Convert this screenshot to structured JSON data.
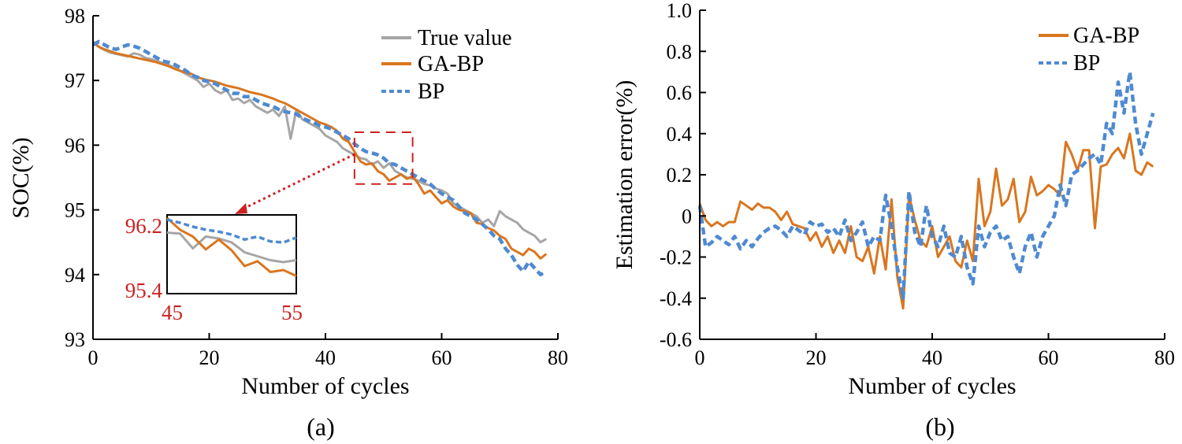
{
  "colors": {
    "true_value": "#a6a6a6",
    "ga_bp": "#d9761f",
    "bp": "#4f8ad1",
    "highlight": "#cc2222"
  },
  "chart_data": [
    {
      "type": "line",
      "panel_label": "(a)",
      "title": "",
      "xlabel": "Number of cycles",
      "ylabel": "SOC(%)",
      "xlim": [
        0,
        80
      ],
      "ylim": [
        93,
        98
      ],
      "xticks": [
        0,
        20,
        40,
        60,
        80
      ],
      "yticks": [
        93,
        94,
        95,
        96,
        97,
        98
      ],
      "grid": false,
      "legend_position": "top-right",
      "series": [
        {
          "name": "True value",
          "style": "solid",
          "color": "#a6a6a6",
          "values": [
            97.58,
            97.52,
            97.47,
            97.43,
            97.41,
            97.39,
            97.37,
            97.42,
            97.4,
            97.35,
            97.33,
            97.3,
            97.27,
            97.24,
            97.2,
            97.15,
            97.1,
            97.05,
            97.0,
            96.9,
            96.95,
            96.85,
            96.8,
            96.85,
            96.7,
            96.72,
            96.65,
            96.7,
            96.6,
            96.55,
            96.5,
            96.55,
            96.45,
            96.6,
            96.1,
            96.55,
            96.4,
            96.35,
            96.3,
            96.25,
            96.15,
            96.1,
            96.05,
            95.95,
            95.9,
            95.85,
            95.8,
            95.78,
            95.7,
            95.75,
            95.65,
            95.72,
            95.6,
            95.55,
            95.5,
            95.48,
            95.45,
            95.4,
            95.38,
            95.33,
            95.3,
            95.25,
            95.1,
            95.05,
            95.0,
            94.95,
            94.9,
            94.8,
            94.85,
            94.75,
            94.98,
            94.9,
            94.85,
            94.8,
            94.7,
            94.65,
            94.6,
            94.5,
            94.55
          ]
        },
        {
          "name": "GA-BP",
          "style": "solid",
          "color": "#d9761f",
          "values": [
            97.6,
            97.52,
            97.48,
            97.45,
            97.42,
            97.4,
            97.38,
            97.36,
            97.34,
            97.32,
            97.3,
            97.28,
            97.25,
            97.22,
            97.18,
            97.15,
            97.12,
            97.1,
            97.05,
            97.02,
            97.0,
            96.98,
            96.95,
            96.92,
            96.9,
            96.88,
            96.85,
            96.82,
            96.8,
            96.78,
            96.75,
            96.72,
            96.68,
            96.65,
            96.6,
            96.55,
            96.5,
            96.45,
            96.4,
            96.35,
            96.32,
            96.28,
            96.22,
            96.1,
            96.05,
            95.9,
            95.75,
            95.7,
            95.72,
            95.6,
            95.55,
            95.45,
            95.5,
            95.55,
            95.48,
            95.52,
            95.4,
            95.25,
            95.3,
            95.2,
            95.1,
            95.15,
            95.05,
            95.0,
            94.98,
            94.95,
            94.8,
            94.78,
            94.72,
            94.68,
            94.6,
            94.55,
            94.4,
            94.35,
            94.3,
            94.4,
            94.35,
            94.25,
            94.32
          ]
        },
        {
          "name": "BP",
          "style": "dashed",
          "color": "#4f8ad1",
          "values": [
            97.55,
            97.6,
            97.55,
            97.5,
            97.48,
            97.52,
            97.55,
            97.53,
            97.5,
            97.45,
            97.4,
            97.35,
            97.3,
            97.28,
            97.25,
            97.2,
            97.15,
            97.08,
            97.05,
            97.0,
            96.98,
            96.95,
            96.9,
            96.85,
            96.8,
            96.8,
            96.75,
            96.75,
            96.7,
            96.65,
            96.62,
            96.6,
            96.55,
            96.52,
            96.5,
            96.48,
            96.42,
            96.38,
            96.35,
            96.3,
            96.28,
            96.25,
            96.2,
            96.15,
            96.1,
            96.02,
            95.95,
            95.9,
            95.88,
            95.85,
            95.8,
            95.72,
            95.7,
            95.65,
            95.6,
            95.55,
            95.5,
            95.45,
            95.4,
            95.32,
            95.25,
            95.2,
            95.15,
            95.05,
            94.95,
            94.9,
            94.85,
            94.78,
            94.7,
            94.6,
            94.55,
            94.4,
            94.3,
            94.15,
            94.05,
            94.2,
            94.1,
            94.0,
            94.05
          ]
        }
      ],
      "inset": {
        "x_range": [
          45,
          55
        ],
        "y_range": [
          95.4,
          96.2
        ],
        "corner_labels": {
          "x_start": "45",
          "x_end": "55",
          "y_top": "96.2",
          "y_bottom": "95.4"
        },
        "series": [
          {
            "name": "True value",
            "values": [
              96.02,
              96.01,
              95.86,
              95.98,
              95.96,
              95.92,
              95.82,
              95.78,
              95.74,
              95.72,
              95.74
            ]
          },
          {
            "name": "GA-BP",
            "values": [
              96.17,
              96.05,
              95.98,
              95.85,
              95.95,
              95.84,
              95.68,
              95.73,
              95.62,
              95.64,
              95.58
            ]
          },
          {
            "name": "BP",
            "values": [
              96.15,
              96.12,
              96.08,
              96.05,
              96.03,
              96.0,
              95.95,
              95.98,
              95.93,
              95.92,
              95.97
            ]
          }
        ]
      }
    },
    {
      "type": "line",
      "panel_label": "(b)",
      "title": "",
      "xlabel": "Number of cycles",
      "ylabel": "Estimation error(%)",
      "xlim": [
        0,
        80
      ],
      "ylim": [
        -0.6,
        1.0
      ],
      "xticks": [
        0,
        20,
        40,
        60,
        80
      ],
      "yticks": [
        -0.6,
        -0.4,
        -0.2,
        0,
        0.2,
        0.4,
        0.6,
        0.8,
        1.0
      ],
      "grid": false,
      "legend_position": "top-right",
      "series": [
        {
          "name": "GA-BP",
          "style": "solid",
          "color": "#d9761f",
          "values": [
            0.06,
            -0.02,
            -0.05,
            -0.03,
            -0.05,
            -0.03,
            -0.03,
            0.07,
            0.05,
            0.03,
            0.06,
            0.04,
            0.04,
            0.02,
            -0.02,
            0.02,
            -0.04,
            -0.05,
            -0.06,
            -0.12,
            -0.08,
            -0.15,
            -0.1,
            -0.18,
            -0.12,
            -0.18,
            -0.05,
            -0.2,
            -0.22,
            -0.15,
            -0.28,
            -0.1,
            -0.26,
            0.08,
            -0.3,
            -0.45,
            0.1,
            -0.02,
            -0.12,
            -0.15,
            -0.05,
            -0.2,
            -0.15,
            -0.1,
            -0.22,
            -0.25,
            -0.12,
            -0.22,
            0.18,
            -0.05,
            0.02,
            0.23,
            0.05,
            0.08,
            0.18,
            -0.03,
            0.02,
            0.19,
            0.1,
            0.12,
            0.15,
            0.13,
            0.1,
            0.36,
            0.3,
            0.22,
            0.32,
            0.32,
            -0.06,
            0.24,
            0.25,
            0.3,
            0.33,
            0.28,
            0.4,
            0.22,
            0.2,
            0.26,
            0.24
          ]
        },
        {
          "name": "BP",
          "style": "dashed",
          "color": "#4f8ad1",
          "values": [
            0.05,
            -0.15,
            -0.13,
            -0.1,
            -0.12,
            -0.14,
            -0.1,
            -0.16,
            -0.12,
            -0.15,
            -0.11,
            -0.08,
            -0.06,
            -0.05,
            -0.07,
            -0.1,
            -0.05,
            -0.07,
            -0.09,
            -0.03,
            -0.05,
            -0.04,
            -0.08,
            -0.06,
            -0.1,
            -0.02,
            -0.12,
            -0.08,
            -0.03,
            -0.15,
            -0.1,
            -0.12,
            0.1,
            -0.05,
            -0.25,
            -0.4,
            0.12,
            -0.08,
            -0.15,
            0.05,
            -0.1,
            -0.15,
            -0.05,
            -0.18,
            -0.2,
            -0.1,
            -0.25,
            -0.33,
            -0.05,
            -0.15,
            -0.08,
            -0.05,
            -0.12,
            -0.1,
            -0.2,
            -0.28,
            -0.15,
            -0.08,
            -0.2,
            -0.1,
            -0.05,
            0.0,
            0.15,
            0.05,
            0.2,
            0.22,
            0.25,
            0.28,
            0.3,
            0.25,
            0.45,
            0.4,
            0.65,
            0.5,
            0.7,
            0.45,
            0.3,
            0.4,
            0.5
          ]
        }
      ]
    }
  ]
}
